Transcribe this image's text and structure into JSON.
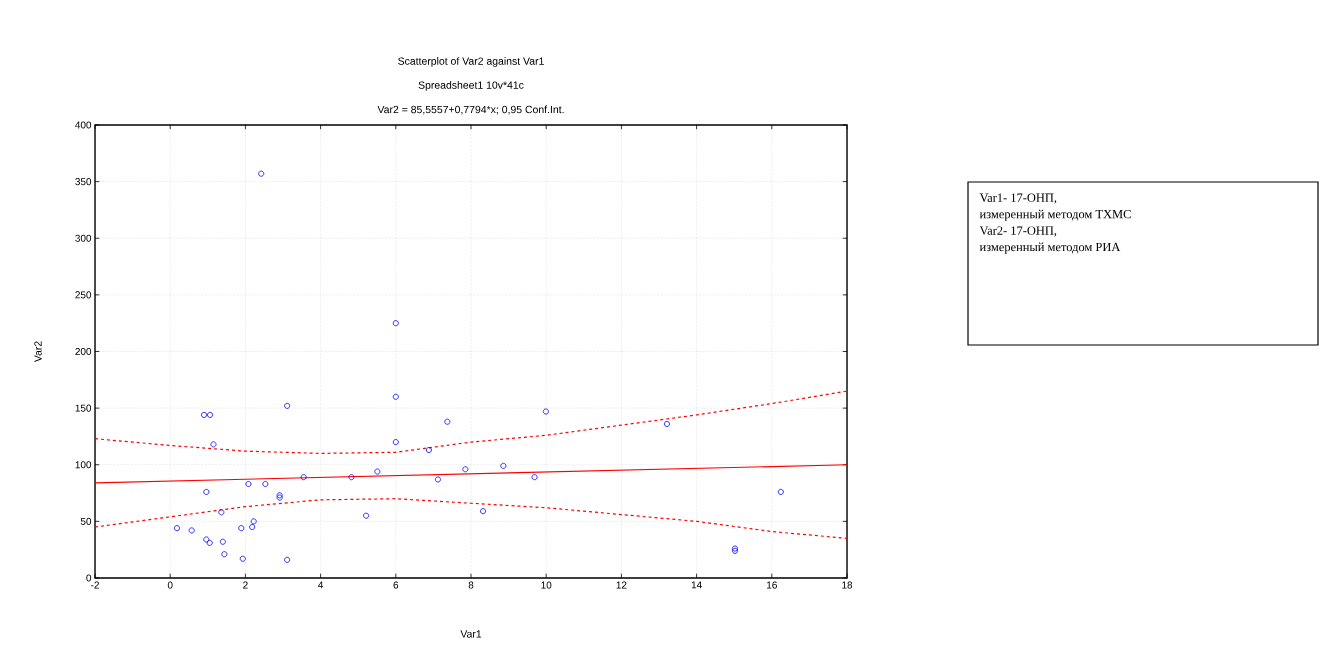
{
  "chart_data": {
    "type": "scatter",
    "title": "Scatterplot of Var2 against Var1",
    "subtitle": "Spreadsheet1 10v*41c",
    "xlabel": "Var1",
    "ylabel": "Var2",
    "annotations": [
      "Var2 = 85,5557+0,7794*x; 0,95 Conf.Int.",
      "Var1- 17-ОНП,",
      "измеренный методом ТХМС",
      "Var2- 17-ОНП,",
      "измеренный методом РИА"
    ],
    "xlim": [
      -2,
      18
    ],
    "ylim": [
      0,
      400
    ],
    "xticks": [
      -2,
      0,
      2,
      4,
      6,
      8,
      10,
      12,
      14,
      16,
      18
    ],
    "yticks": [
      0,
      50,
      100,
      150,
      200,
      250,
      300,
      350,
      400
    ],
    "grid": true,
    "series": [
      {
        "color": "#0000ff",
        "marker": "circle",
        "x": [
          2.42,
          6.0,
          6.0,
          3.11,
          0.9,
          1.06,
          7.37,
          1.15,
          6.0,
          6.88,
          3.55,
          4.82,
          5.51,
          7.85,
          7.12,
          2.08,
          2.53,
          0.96,
          2.91,
          2.91,
          1.36,
          5.21,
          2.22,
          2.18,
          0.18,
          0.57,
          1.89,
          0.96,
          1.05,
          1.4,
          1.44,
          1.93,
          3.11,
          8.32,
          8.86,
          9.69,
          9.99,
          13.21,
          15.02,
          15.02,
          16.24
        ],
        "values": [
          357,
          225,
          160,
          152,
          144,
          144,
          138,
          118,
          120,
          113,
          89,
          89,
          94,
          96,
          87,
          83,
          83,
          76,
          73,
          71,
          58,
          55,
          50,
          45,
          44,
          42,
          44,
          34,
          31,
          32,
          21,
          17,
          16,
          59,
          99,
          89,
          147,
          136,
          26,
          24,
          76
        ]
      },
      {
        "type": "line",
        "color": "#ff0000",
        "marker": "none",
        "line_style": "solid",
        "x": [
          -2,
          18
        ],
        "values": [
          84,
          100
        ]
      },
      {
        "type": "line",
        "color": "#ff0000",
        "marker": "none",
        "line_style": "dashed",
        "x": [
          -2,
          0,
          2,
          4,
          6,
          8,
          10,
          12,
          14,
          16,
          18
        ],
        "values": [
          123,
          117,
          112,
          110,
          111,
          120,
          126,
          135,
          144,
          154,
          165
        ]
      },
      {
        "type": "line",
        "color": "#ff0000",
        "marker": "none",
        "line_style": "dashed",
        "x": [
          -2,
          0,
          2,
          4,
          6,
          8,
          10,
          12,
          14,
          16,
          18
        ],
        "values": [
          45,
          54,
          63,
          69,
          70,
          66,
          62,
          56,
          50,
          41,
          35
        ]
      }
    ]
  }
}
